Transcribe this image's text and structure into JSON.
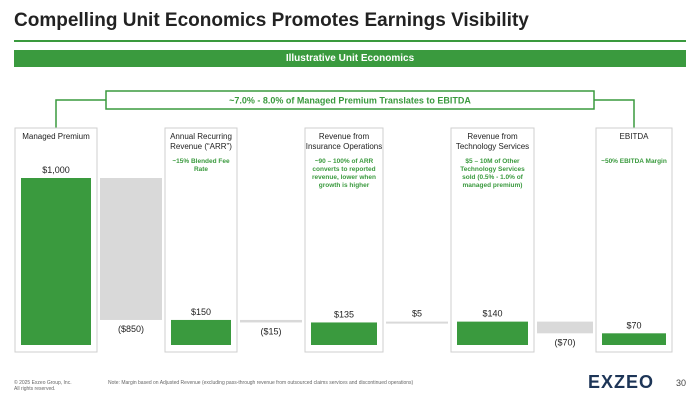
{
  "title": "Compelling Unit Economics Promotes Earnings Visibility",
  "banner": "Illustrative Unit Economics",
  "callout": "~7.0% - 8.0% of Managed Premium Translates to EBITDA",
  "chart_data": {
    "type": "waterfall",
    "categories": [
      "Managed Premium",
      null,
      "Annual Recurring Revenue (“ARR”)",
      null,
      "Revenue from Insurance Operations",
      null,
      "Revenue from Technology Services",
      null,
      "EBITDA"
    ],
    "notes": [
      null,
      null,
      "~15% Blended Fee Rate",
      null,
      "~90 – 100% of ARR converts to reported revenue, lower when growth is higher",
      null,
      "$5 – 10M of Other Technology Services sold (0.5% - 1.0% of managed premium)",
      null,
      "~50% EBITDA Margin"
    ],
    "values": [
      1000,
      -850,
      150,
      -15,
      135,
      5,
      140,
      -70,
      70
    ],
    "value_labels": [
      "$1,000",
      "($850)",
      "$150",
      "($15)",
      "$135",
      "$5",
      "$140",
      "($70)",
      "$70"
    ],
    "color": "#3a9a3e",
    "connector_color": "#d9d9d9"
  },
  "footer": {
    "copyright": [
      "© 2025 Exzeo Group, Inc.",
      "All rights reserved."
    ],
    "note": "Note: Margin based on Adjusted Revenue (excluding pass-through revenue from outsourced claims services and discontinued operations)",
    "logo": "EXZEO",
    "page": 30
  }
}
